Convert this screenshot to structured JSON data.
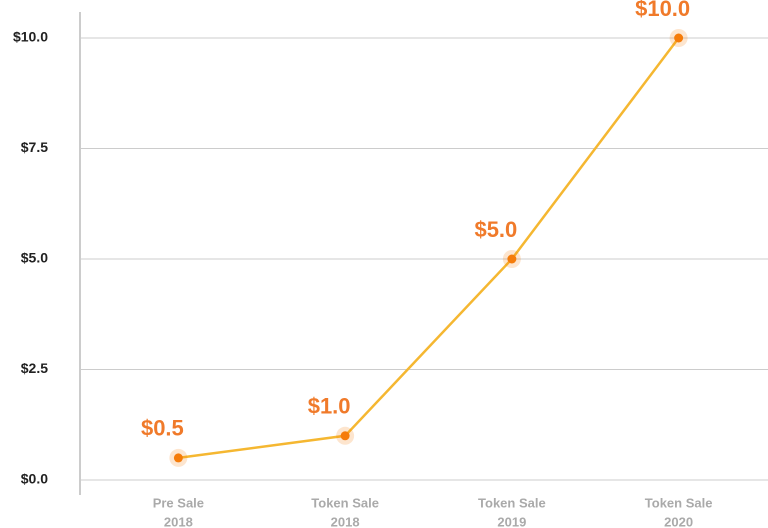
{
  "chart_data": {
    "type": "line",
    "categories": [
      [
        "Pre Sale",
        "2018"
      ],
      [
        "Token Sale",
        "2018"
      ],
      [
        "Token Sale",
        "2019"
      ],
      [
        "Token Sale",
        "2020"
      ]
    ],
    "series": [
      {
        "color": "#f5b731",
        "marker_color": "#f57c0a",
        "values": [
          0.5,
          1.0,
          5.0,
          10.0
        ],
        "value_labels": [
          "$0.5",
          "$1.0",
          "$5.0",
          "$10.0"
        ]
      }
    ],
    "ylim": [
      0,
      10
    ],
    "yticks": [
      {
        "value": 0,
        "label": "$0.0"
      },
      {
        "value": 2.5,
        "label": "$2.5"
      },
      {
        "value": 5,
        "label": "$5.0"
      },
      {
        "value": 7.5,
        "label": "$7.5"
      },
      {
        "value": 10,
        "label": "$10.0"
      }
    ],
    "grid": true
  }
}
